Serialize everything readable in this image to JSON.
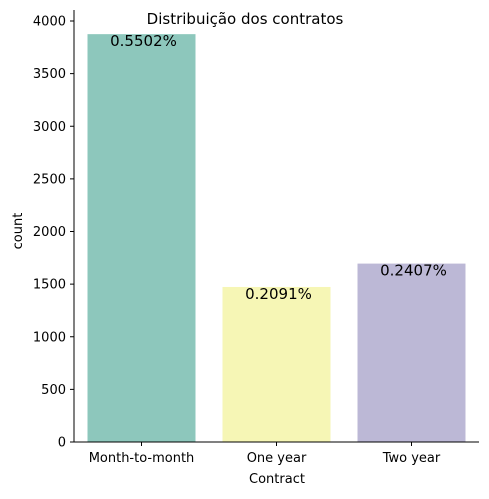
{
  "chart_data": {
    "type": "bar",
    "title": "Distribuição dos contratos",
    "xlabel": "Contract",
    "ylabel": "count",
    "categories": [
      "Month-to-month",
      "One year",
      "Two year"
    ],
    "values": [
      3875,
      1473,
      1695
    ],
    "data_labels": [
      "0.5502%",
      "0.2091%",
      "0.2407%"
    ],
    "colors": [
      "#8dc7bc",
      "#f6f6b5",
      "#bcb8d6"
    ],
    "ylim": [
      0,
      4000
    ],
    "yticks": [
      0,
      500,
      1000,
      1500,
      2000,
      2500,
      3000,
      3500,
      4000
    ],
    "grid": false,
    "legend": "none"
  }
}
